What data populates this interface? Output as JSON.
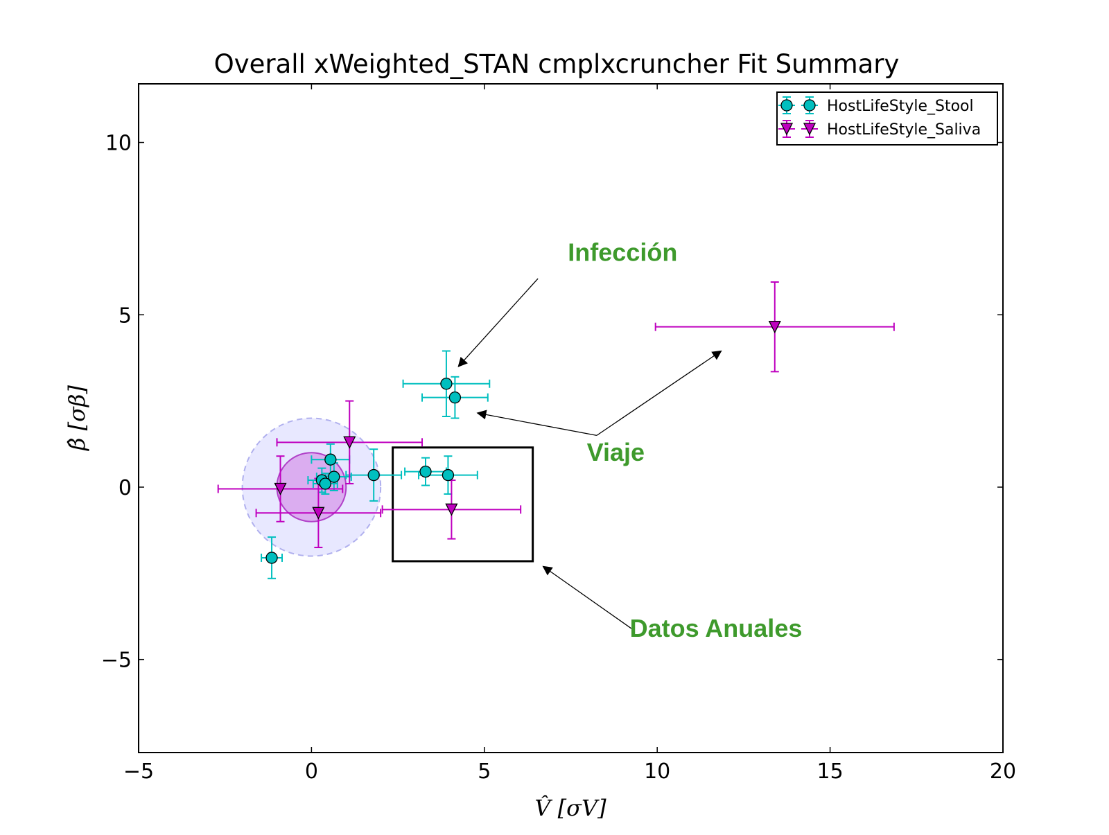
{
  "chart_data": {
    "type": "scatter",
    "title": "Overall xWeighted_STAN cmplxcruncher Fit Summary",
    "xlabel": "V̂ [σV]",
    "ylabel": "β̂ [σβ]",
    "xlim": [
      -5,
      20
    ],
    "ylim": [
      -7.7,
      11.7
    ],
    "xticks": [
      -5,
      0,
      5,
      10,
      15,
      20
    ],
    "yticks": [
      -5,
      0,
      5,
      10
    ],
    "xtick_labels": [
      "−5",
      "0",
      "5",
      "10",
      "15",
      "20"
    ],
    "ytick_labels": [
      "−5",
      "0",
      "5",
      "10"
    ],
    "grid": false,
    "legend_position": "top-right",
    "series": [
      {
        "name": "HostLifeStyle_Stool",
        "marker": "circle",
        "color": "#00bfbf",
        "points": [
          {
            "x": 3.9,
            "y": 3.0,
            "xerr": 1.25,
            "yerr": 0.95
          },
          {
            "x": 4.15,
            "y": 2.6,
            "xerr": 0.95,
            "yerr": 0.6
          },
          {
            "x": 0.55,
            "y": 0.8,
            "xerr": 0.55,
            "yerr": 0.45
          },
          {
            "x": 0.65,
            "y": 0.3,
            "xerr": 0.5,
            "yerr": 0.4
          },
          {
            "x": 0.3,
            "y": 0.2,
            "xerr": 0.4,
            "yerr": 0.35
          },
          {
            "x": 0.4,
            "y": 0.1,
            "xerr": 0.35,
            "yerr": 0.3
          },
          {
            "x": 1.8,
            "y": 0.35,
            "xerr": 0.8,
            "yerr": 0.75
          },
          {
            "x": 3.3,
            "y": 0.45,
            "xerr": 0.6,
            "yerr": 0.4
          },
          {
            "x": 3.95,
            "y": 0.35,
            "xerr": 0.85,
            "yerr": 0.55
          },
          {
            "x": -1.15,
            "y": -2.05,
            "xerr": 0.3,
            "yerr": 0.6
          }
        ]
      },
      {
        "name": "HostLifeStyle_Saliva",
        "marker": "triangle-down",
        "color": "#bf00bf",
        "points": [
          {
            "x": 13.4,
            "y": 4.65,
            "xerr": 3.45,
            "yerr": 1.3
          },
          {
            "x": 1.1,
            "y": 1.3,
            "xerr": 2.1,
            "yerr": 1.2
          },
          {
            "x": -0.9,
            "y": -0.05,
            "xerr": 1.8,
            "yerr": 0.95
          },
          {
            "x": 0.2,
            "y": -0.75,
            "xerr": 1.8,
            "yerr": 1.0
          },
          {
            "x": 4.05,
            "y": -0.65,
            "xerr": 2.0,
            "yerr": 0.85
          }
        ]
      }
    ],
    "shapes": [
      {
        "type": "circle",
        "cx": 0,
        "cy": 0,
        "rx": 2.0,
        "ry": 2.0,
        "fill": "#ccccff",
        "fill_opacity": 0.45,
        "stroke": "#b0b0ee",
        "dashed": true
      },
      {
        "type": "circle",
        "cx": 0,
        "cy": 0,
        "rx": 1.0,
        "ry": 1.0,
        "fill": "#cc66dd",
        "fill_opacity": 0.45,
        "stroke": "#b040c8",
        "dashed": false
      },
      {
        "type": "rect",
        "x0": 2.35,
        "x1": 6.4,
        "y0": -2.15,
        "y1": 1.15,
        "stroke": "#000000"
      }
    ],
    "annotations": [
      {
        "text": "Infección",
        "text_x": 9.0,
        "text_y": 6.8,
        "arrows": [
          {
            "from": [
              6.55,
              6.05
            ],
            "to": [
              4.25,
              3.5
            ]
          }
        ]
      },
      {
        "text": "Viaje",
        "text_x": 8.8,
        "text_y": 1.0,
        "arrows": [
          {
            "from": [
              8.25,
              1.5
            ],
            "to": [
              4.8,
              2.15
            ]
          },
          {
            "from": [
              8.25,
              1.5
            ],
            "to": [
              11.85,
              3.95
            ]
          }
        ]
      },
      {
        "text": "Datos Anuales",
        "text_x": 11.7,
        "text_y": -4.1,
        "arrows": [
          {
            "from": [
              9.25,
              -4.1
            ],
            "to": [
              6.7,
              -2.3
            ]
          }
        ]
      }
    ]
  }
}
